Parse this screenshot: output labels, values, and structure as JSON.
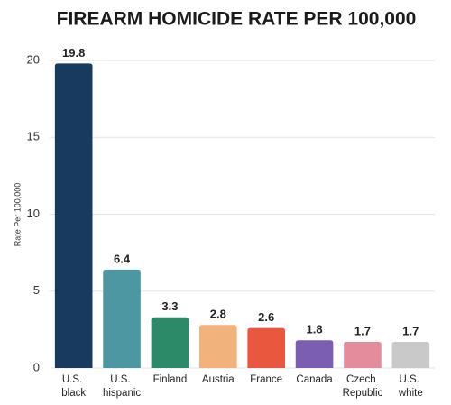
{
  "chart_data": {
    "type": "bar",
    "title": "FIREARM HOMICIDE RATE PER 100,000",
    "y_label": "Rate Per 100,000",
    "categories": [
      "U.S. black",
      "U.S. hispanic",
      "Finland",
      "Austria",
      "France",
      "Canada",
      "Czech Republic",
      "U.S. white"
    ],
    "values": [
      19.8,
      6.4,
      3.3,
      2.8,
      2.6,
      1.8,
      1.7,
      1.7
    ],
    "colors": [
      "#173a5e",
      "#4d97a2",
      "#2d8a68",
      "#f1b27b",
      "#e9573f",
      "#7b5db2",
      "#e48c9b",
      "#c9c9c9"
    ],
    "ylim": [
      0,
      20
    ],
    "yticks": [
      0,
      5,
      10,
      15,
      20
    ],
    "grid": true
  }
}
